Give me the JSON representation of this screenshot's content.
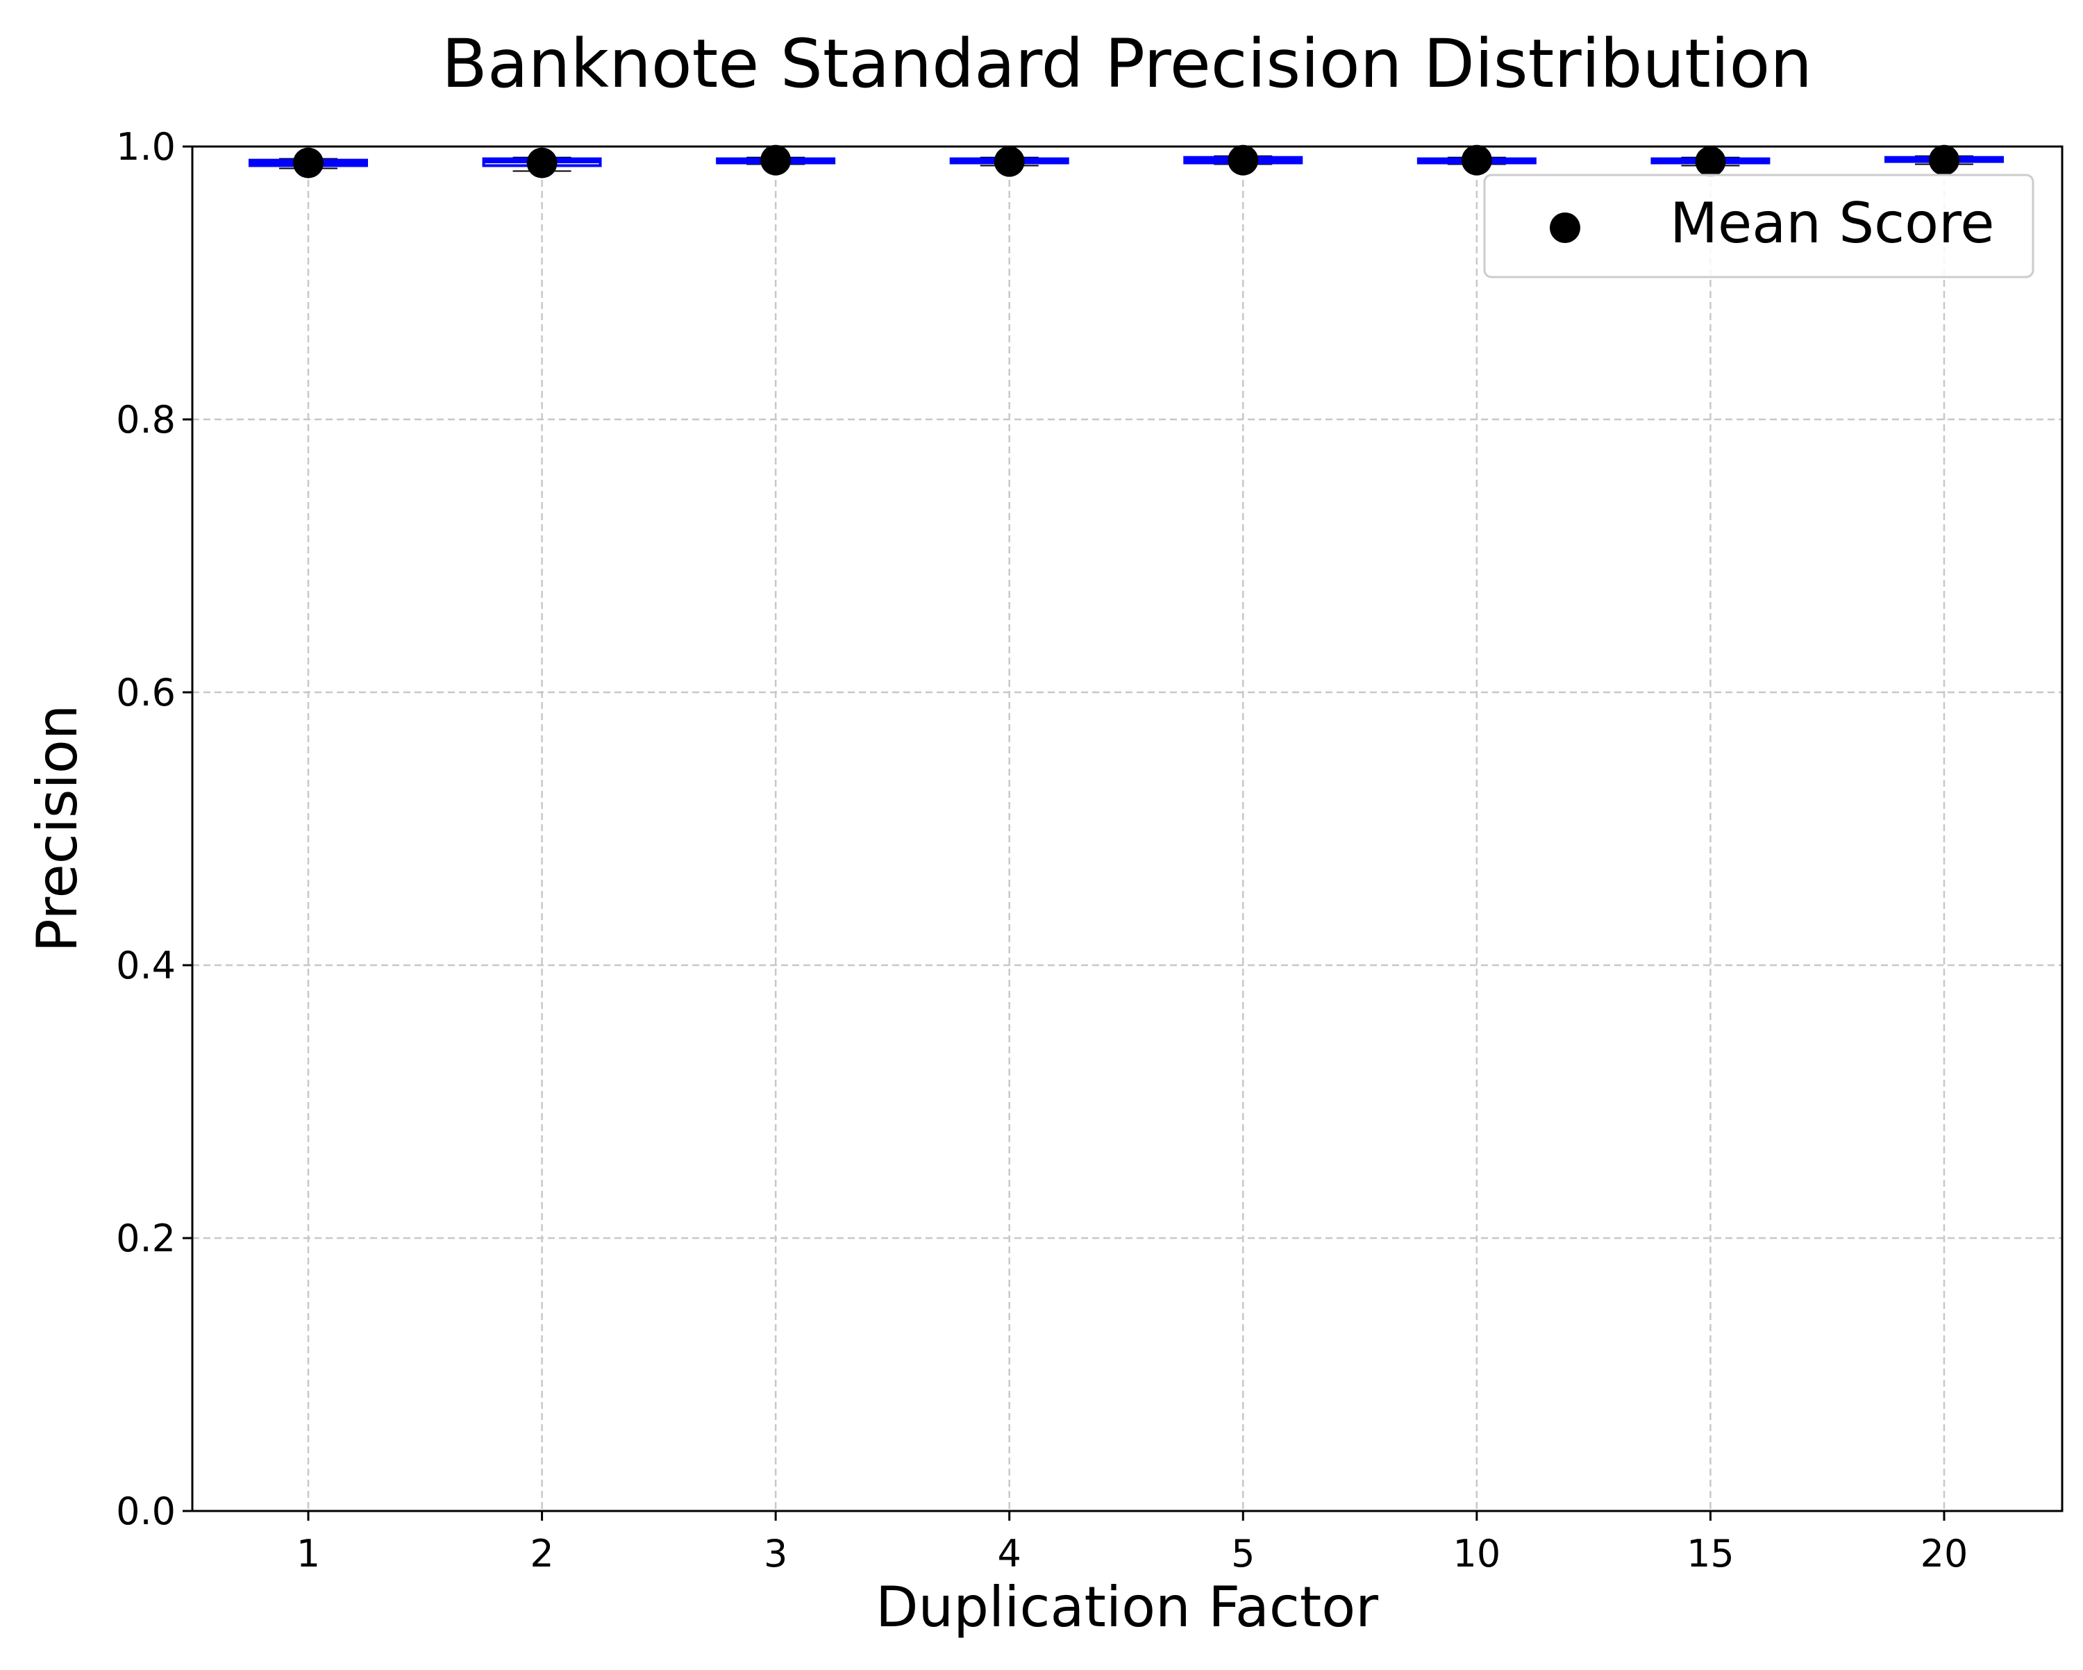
{
  "chart_data": {
    "type": "box",
    "title": "Banknote Standard Precision Distribution",
    "xlabel": "Duplication Factor",
    "ylabel": "Precision",
    "categories": [
      "1",
      "2",
      "3",
      "4",
      "5",
      "10",
      "15",
      "20"
    ],
    "ylim": [
      0,
      1.0
    ],
    "yticks": [
      0.0,
      0.2,
      0.4,
      0.6,
      0.8,
      1.0
    ],
    "ytick_labels": [
      "0.0",
      "0.2",
      "0.4",
      "0.6",
      "0.8",
      "1.0"
    ],
    "grid": true,
    "legend": {
      "position": "top-right",
      "entries": [
        {
          "label": "Mean Score",
          "marker": "circle",
          "color": "#000000"
        }
      ]
    },
    "series": [
      {
        "name": "Mean Score",
        "boxes": [
          {
            "category": "1",
            "whisker_low": 0.984,
            "q1": 0.986,
            "median": 0.988,
            "q3": 0.99,
            "whisker_high": 0.991,
            "mean": 0.988
          },
          {
            "category": "2",
            "whisker_low": 0.982,
            "q1": 0.986,
            "median": 0.989,
            "q3": 0.991,
            "whisker_high": 0.992,
            "mean": 0.988
          },
          {
            "category": "3",
            "whisker_low": 0.987,
            "q1": 0.988,
            "median": 0.99,
            "q3": 0.991,
            "whisker_high": 0.992,
            "mean": 0.99
          },
          {
            "category": "4",
            "whisker_low": 0.986,
            "q1": 0.988,
            "median": 0.989,
            "q3": 0.991,
            "whisker_high": 0.992,
            "mean": 0.989
          },
          {
            "category": "5",
            "whisker_low": 0.987,
            "q1": 0.988,
            "median": 0.99,
            "q3": 0.992,
            "whisker_high": 0.993,
            "mean": 0.99
          },
          {
            "category": "10",
            "whisker_low": 0.987,
            "q1": 0.988,
            "median": 0.99,
            "q3": 0.991,
            "whisker_high": 0.992,
            "mean": 0.99
          },
          {
            "category": "15",
            "whisker_low": 0.986,
            "q1": 0.988,
            "median": 0.989,
            "q3": 0.991,
            "whisker_high": 0.992,
            "mean": 0.989
          },
          {
            "category": "20",
            "whisker_low": 0.987,
            "q1": 0.989,
            "median": 0.991,
            "q3": 0.992,
            "whisker_high": 0.993,
            "mean": 0.99
          }
        ]
      }
    ],
    "colors": {
      "box_edge": "#0000ff",
      "median": "#0000ff",
      "mean_marker": "#000000",
      "whisker": "#000000",
      "grid": "#c8c8c8"
    }
  }
}
